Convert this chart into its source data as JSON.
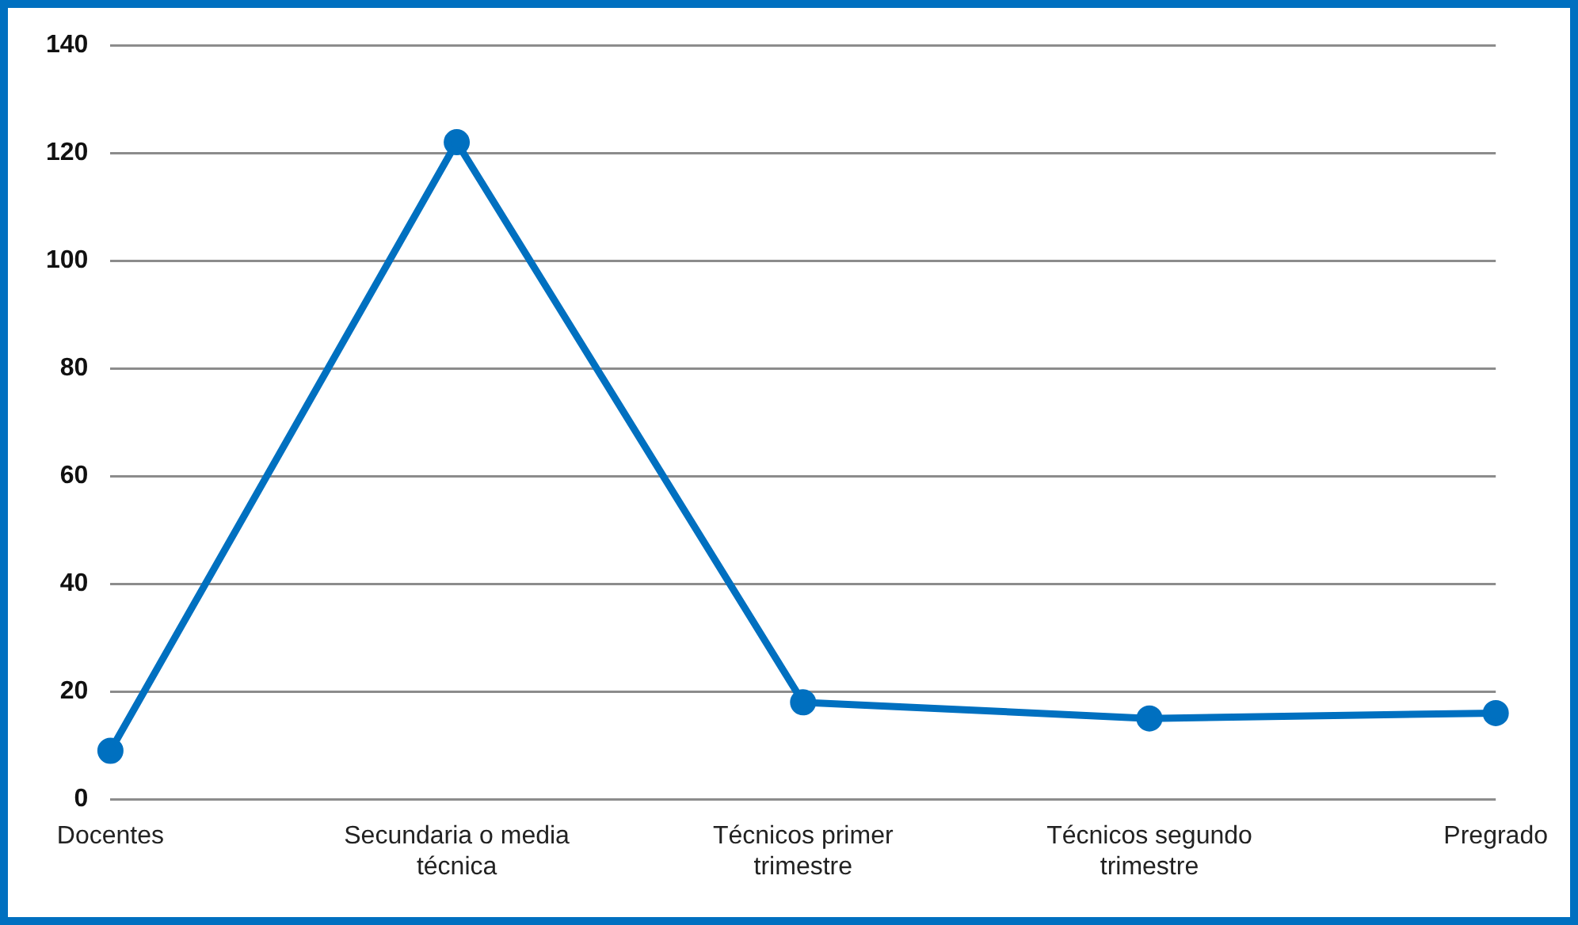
{
  "chart_data": {
    "type": "line",
    "categories": [
      "Docentes",
      "Secundaria o media técnica",
      "Técnicos primer trimestre",
      "Técnicos segundo trimestre",
      "Pregrado"
    ],
    "series": [
      {
        "color": "#0070c0",
        "values": [
          9,
          122,
          18,
          15,
          16
        ]
      }
    ],
    "ylim": [
      0,
      140
    ],
    "yticks": [
      0,
      20,
      40,
      60,
      80,
      100,
      120,
      140
    ],
    "grid": "y",
    "legend": false,
    "marker": "circle",
    "line_style": "solid"
  }
}
